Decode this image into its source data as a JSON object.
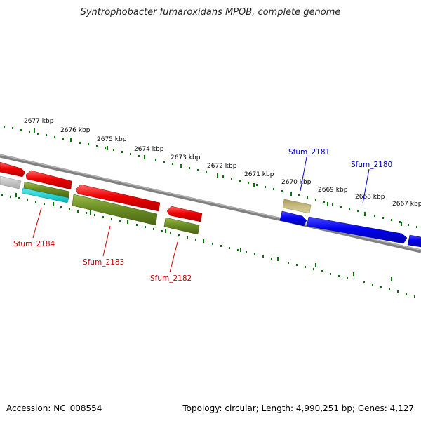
{
  "title": "Syntrophobacter fumaroxidans MPOB, complete genome",
  "footer": {
    "accession": "Accession: NC_008554",
    "topology": "Topology: circular; Length: 4,990,251 bp; Genes: 4,127"
  },
  "scale": {
    "unit": "kbp",
    "ticks": [
      {
        "kbp": 2677,
        "label": "2677 kbp"
      },
      {
        "kbp": 2676,
        "label": "2676 kbp"
      },
      {
        "kbp": 2675,
        "label": "2675 kbp"
      },
      {
        "kbp": 2674,
        "label": "2674 kbp"
      },
      {
        "kbp": 2673,
        "label": "2673 kbp"
      },
      {
        "kbp": 2672,
        "label": "2672 kbp"
      },
      {
        "kbp": 2671,
        "label": "2671 kbp"
      },
      {
        "kbp": 2670,
        "label": "2670 kbp"
      },
      {
        "kbp": 2669,
        "label": "2669 kbp"
      },
      {
        "kbp": 2668,
        "label": "2668 kbp"
      },
      {
        "kbp": 2667,
        "label": "2667 kbp"
      }
    ]
  },
  "labeled_genes": [
    {
      "name": "Sfum_2184",
      "color": "#cc0000"
    },
    {
      "name": "Sfum_2183",
      "color": "#cc0000"
    },
    {
      "name": "Sfum_2182",
      "color": "#cc0000"
    },
    {
      "name": "Sfum_2181",
      "color": "#0000cc"
    },
    {
      "name": "Sfum_2180",
      "color": "#0000cc"
    }
  ],
  "colors": {
    "gene_red": "#ee0000",
    "gene_blue": "#0000ee",
    "gene_olive": "#6b8e23",
    "gene_khaki": "#bdb76b",
    "gene_cyan": "#00ced1",
    "gene_gray": "#c0c0c0",
    "backbone": "#808080",
    "tick_green": "#007700",
    "label_red": "#cc0000",
    "label_blue": "#0000cc"
  }
}
